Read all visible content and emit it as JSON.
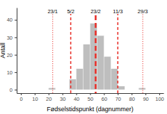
{
  "chart_data": {
    "type": "histogram",
    "x_label": "Fødselstidspunkt (dagnummer)",
    "y_label": "Antall",
    "bins": [
      20,
      25,
      30,
      35,
      40,
      45,
      50,
      55,
      60,
      65,
      70,
      75,
      80,
      85,
      90
    ],
    "values": [
      1,
      0,
      0,
      6,
      12,
      26,
      38,
      31,
      19,
      12,
      2,
      0,
      0,
      1
    ],
    "color": "#bebebe",
    "xlim": [
      -3,
      103
    ],
    "xticks": [
      0,
      10,
      20,
      30,
      40,
      50,
      60,
      70,
      80,
      90,
      100
    ],
    "ylim": [
      -2,
      47
    ],
    "yticks": [
      0,
      10,
      20,
      30,
      40
    ],
    "grid": false,
    "vlines": [
      {
        "value": 23,
        "label": "23/1",
        "line_style": "dotted",
        "color": "#e8302a"
      },
      {
        "value": 36,
        "label": "5/2",
        "line_style": "dashed",
        "color": "#e8302a"
      },
      {
        "value": 54,
        "label": "23/2",
        "line_style": "longdash",
        "color": "#e8302a"
      },
      {
        "value": 70,
        "label": "11/3",
        "line_style": "dashed",
        "color": "#e8302a"
      },
      {
        "value": 88,
        "label": "29/3",
        "line_style": "dotted",
        "color": "#e8302a"
      }
    ]
  }
}
